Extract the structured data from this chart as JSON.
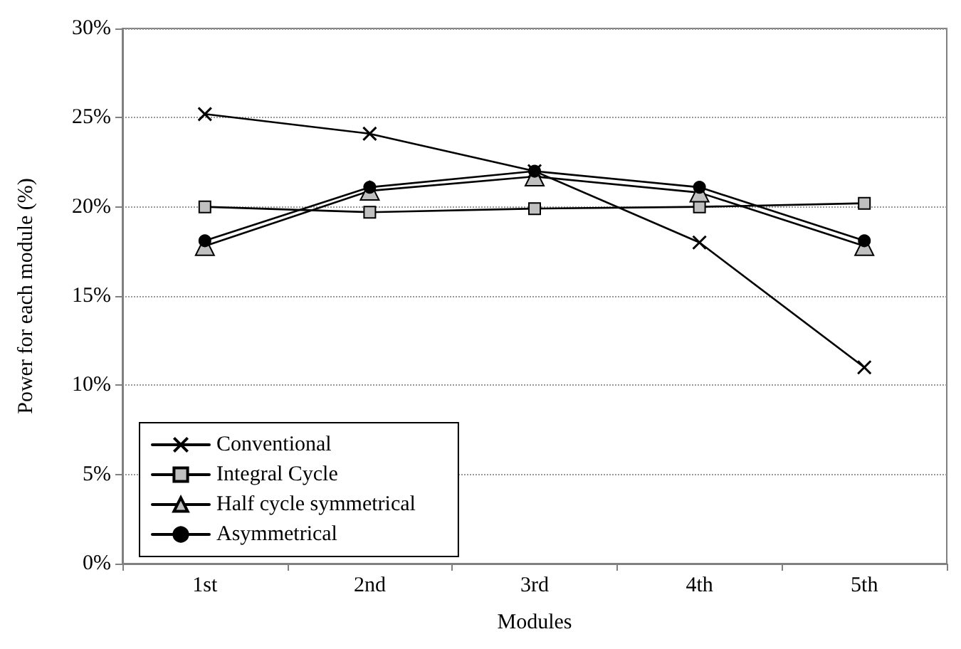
{
  "chart_data": {
    "type": "line",
    "xlabel": "Modules",
    "ylabel": "Power for each module (%)",
    "categories": [
      "1st",
      "2nd",
      "3rd",
      "4th",
      "5th"
    ],
    "series": [
      {
        "name": "Conventional",
        "color": "#000000",
        "marker": "cross",
        "values": [
          25.2,
          24.1,
          22.0,
          18.0,
          11.0
        ]
      },
      {
        "name": "Integral Cycle",
        "color": "#c0c0c0",
        "marker": "square",
        "values": [
          20.0,
          19.7,
          19.9,
          20.0,
          20.2
        ]
      },
      {
        "name": "Half cycle symmetrical",
        "color": "#c0c0c0",
        "marker": "triangle",
        "values": [
          17.8,
          20.9,
          21.7,
          20.8,
          17.8
        ]
      },
      {
        "name": "Asymmetrical",
        "color": "#000000",
        "marker": "circle",
        "values": [
          18.1,
          21.1,
          22.0,
          21.1,
          18.1
        ]
      }
    ],
    "ylim": [
      0,
      30
    ],
    "yticks": [
      {
        "value": 0,
        "label": "0%"
      },
      {
        "value": 5,
        "label": "5%"
      },
      {
        "value": 10,
        "label": "10%"
      },
      {
        "value": 15,
        "label": "15%"
      },
      {
        "value": 20,
        "label": "20%"
      },
      {
        "value": 25,
        "label": "25%"
      },
      {
        "value": 30,
        "label": "30%"
      }
    ],
    "grid": "y",
    "legend": "bottom left",
    "line_style": "solid"
  }
}
